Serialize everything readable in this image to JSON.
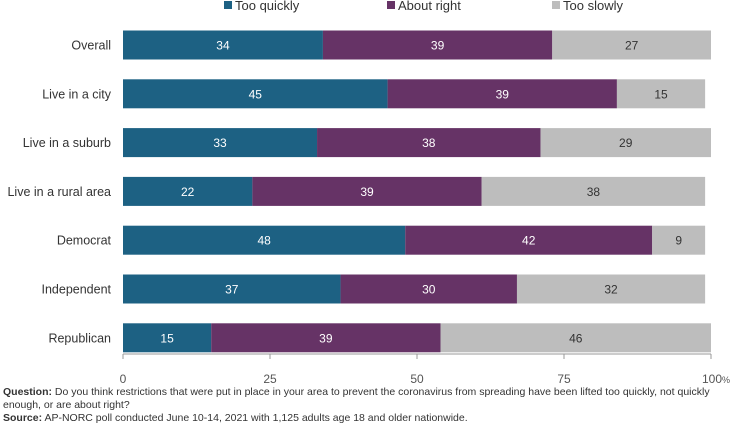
{
  "colors": {
    "too_quickly": "#1d6183",
    "about_right": "#663366",
    "too_slowly": "#bdbdbd"
  },
  "chart_data": {
    "type": "bar",
    "orientation": "horizontal",
    "stacked": true,
    "categories": [
      "Overall",
      "Live in a city",
      "Live in a suburb",
      "Live in a rural area",
      "Democrat",
      "Independent",
      "Republican"
    ],
    "series": [
      {
        "name": "Too quickly",
        "values": [
          34,
          45,
          33,
          22,
          48,
          37,
          15
        ]
      },
      {
        "name": "About right",
        "values": [
          39,
          39,
          38,
          39,
          42,
          30,
          39
        ]
      },
      {
        "name": "Too slowly",
        "values": [
          27,
          15,
          29,
          38,
          9,
          32,
          46
        ]
      }
    ],
    "xlim": [
      0,
      100
    ],
    "xticks": [
      "0",
      "25",
      "50",
      "75",
      "100"
    ],
    "xtick_suffix": "%",
    "legend": "top"
  },
  "footnote": {
    "question_key": "Question:",
    "question_text": "Do you think restrictions that were put in place in your area to prevent the coronavirus from spreading have been lifted too quickly, not quickly enough, or are about right?",
    "source_key": "Source:",
    "source_text": "AP-NORC poll conducted June 10-14, 2021 with 1,125 adults age 18 and older nationwide."
  }
}
